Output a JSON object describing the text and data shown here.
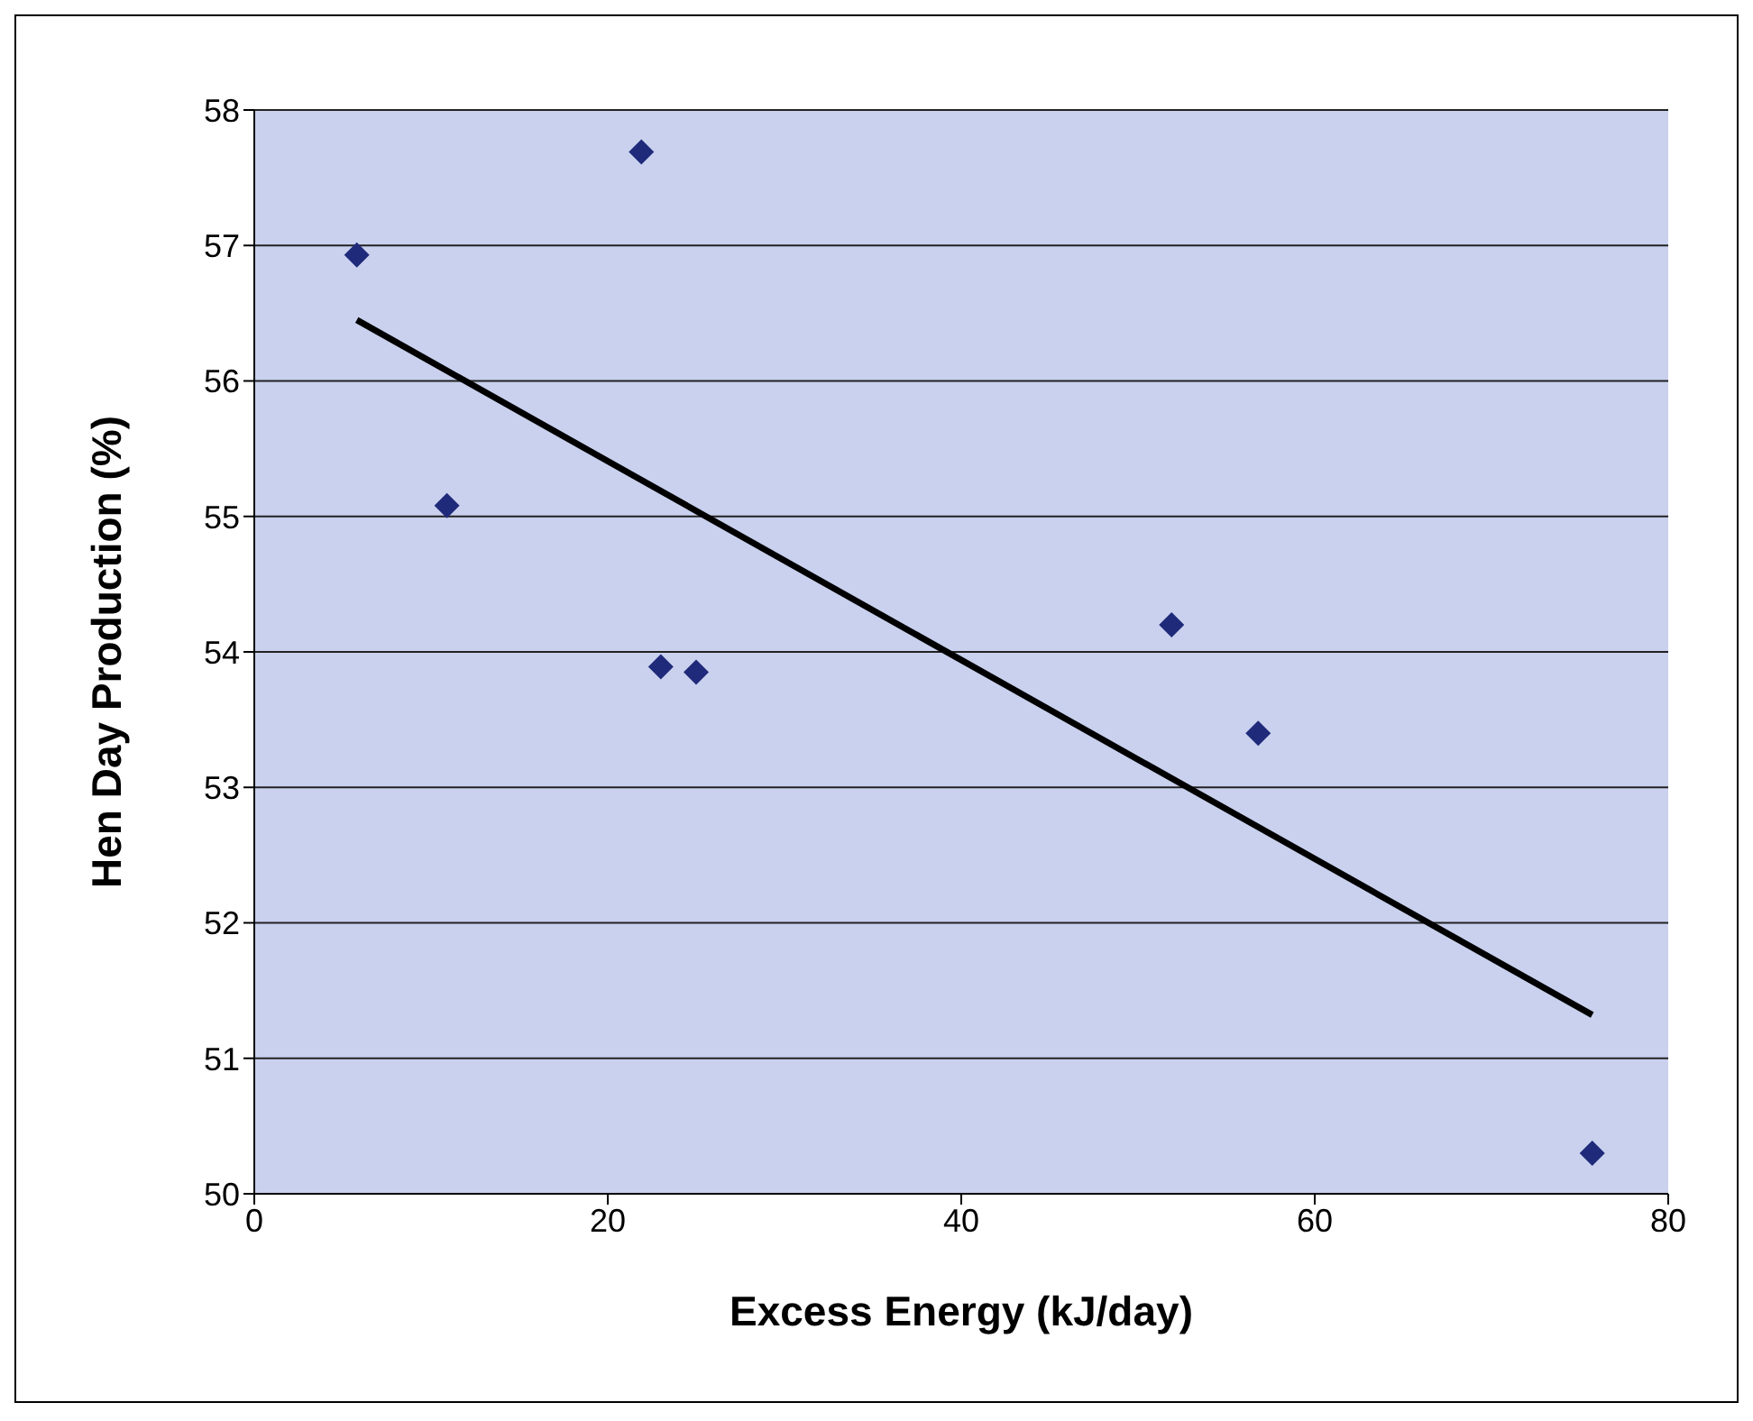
{
  "chart_data": {
    "type": "scatter",
    "xlabel": "Excess Energy (kJ/day)",
    "ylabel": "Hen Day Production (%)",
    "series": [
      {
        "marker": "diamond",
        "color": "#1f2a7a",
        "x": [
          5.8,
          21.9,
          10.9,
          23.0,
          25.0,
          51.9,
          56.8,
          75.7
        ],
        "values": [
          56.93,
          57.69,
          55.08,
          53.89,
          53.85,
          54.2,
          53.4,
          50.3
        ]
      },
      {
        "type": "line",
        "marker": "none",
        "color": "#000000",
        "x": [
          5.8,
          75.7
        ],
        "values": [
          56.45,
          51.32
        ]
      }
    ],
    "xlim": [
      0,
      80
    ],
    "xticks": [
      0,
      20,
      40,
      60,
      80
    ],
    "ylim": [
      50,
      58
    ],
    "yticks": [
      50,
      51,
      52,
      53,
      54,
      55,
      56,
      57,
      58
    ],
    "grid": "y",
    "legend": false,
    "line_style": "solid"
  }
}
